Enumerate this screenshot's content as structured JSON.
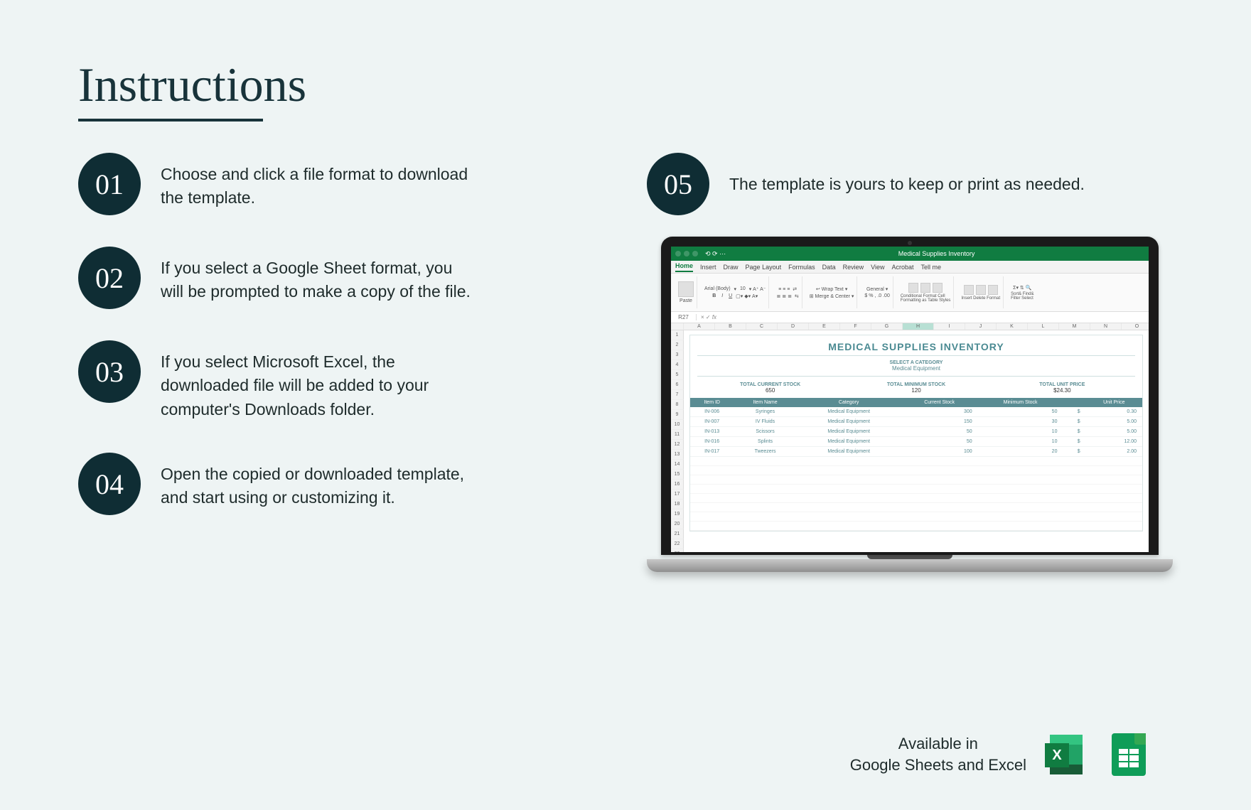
{
  "title": "Instructions",
  "steps": [
    {
      "num": "01",
      "text": "Choose and click a file format to download the template."
    },
    {
      "num": "02",
      "text": "If you select a Google Sheet format, you will be prompted to make a copy of the file."
    },
    {
      "num": "03",
      "text": "If you select Microsoft Excel, the downloaded file will be added to your computer's Downloads folder."
    },
    {
      "num": "04",
      "text": "Open the copied or downloaded template, and start using or customizing it."
    },
    {
      "num": "05",
      "text": "The template is yours to keep or print as needed."
    }
  ],
  "footer": {
    "line1": "Available in",
    "line2": "Google Sheets and Excel"
  },
  "excel": {
    "doc_title": "Medical Supplies Inventory",
    "tabs": [
      "Home",
      "Insert",
      "Draw",
      "Page Layout",
      "Formulas",
      "Data",
      "Review",
      "View",
      "Acrobat",
      "Tell me"
    ],
    "font": "Arial (Body)",
    "font_size": "10",
    "cell_ref": "R27",
    "columns": [
      "",
      "A",
      "B",
      "C",
      "D",
      "E",
      "F",
      "G",
      "H",
      "I",
      "J",
      "K",
      "L",
      "M",
      "N",
      "O"
    ],
    "selected_col_index": 8,
    "row_count": 24,
    "sheet": {
      "title": "MEDICAL SUPPLIES INVENTORY",
      "subtitle": "SELECT A CATEGORY",
      "category": "Medical Equipment",
      "totals": [
        {
          "label": "TOTAL CURRENT STOCK",
          "value": "650"
        },
        {
          "label": "TOTAL MINIMUM STOCK",
          "value": "120"
        },
        {
          "label": "TOTAL UNIT PRICE",
          "value": "$24.30"
        }
      ],
      "headers": [
        "Item ID",
        "Item Name",
        "Category",
        "Current Stock",
        "Minimum Stock",
        "",
        "Unit Price"
      ],
      "rows": [
        [
          "IN-006",
          "Syringes",
          "Medical Equipment",
          "300",
          "50",
          "$",
          "0.30"
        ],
        [
          "IN-007",
          "IV Fluids",
          "Medical Equipment",
          "150",
          "30",
          "$",
          "5.00"
        ],
        [
          "IN-013",
          "Scissors",
          "Medical Equipment",
          "50",
          "10",
          "$",
          "5.00"
        ],
        [
          "IN-016",
          "Splints",
          "Medical Equipment",
          "50",
          "10",
          "$",
          "12.00"
        ],
        [
          "IN-017",
          "Tweezers",
          "Medical Equipment",
          "100",
          "20",
          "$",
          "2.00"
        ]
      ]
    }
  },
  "colors": {
    "page_bg": "#eef4f4",
    "badge_bg": "#0f2d34",
    "excel_brand": "#107c41",
    "sheet_accent": "#4a8a92",
    "gs_brand": "#0f9d58"
  }
}
